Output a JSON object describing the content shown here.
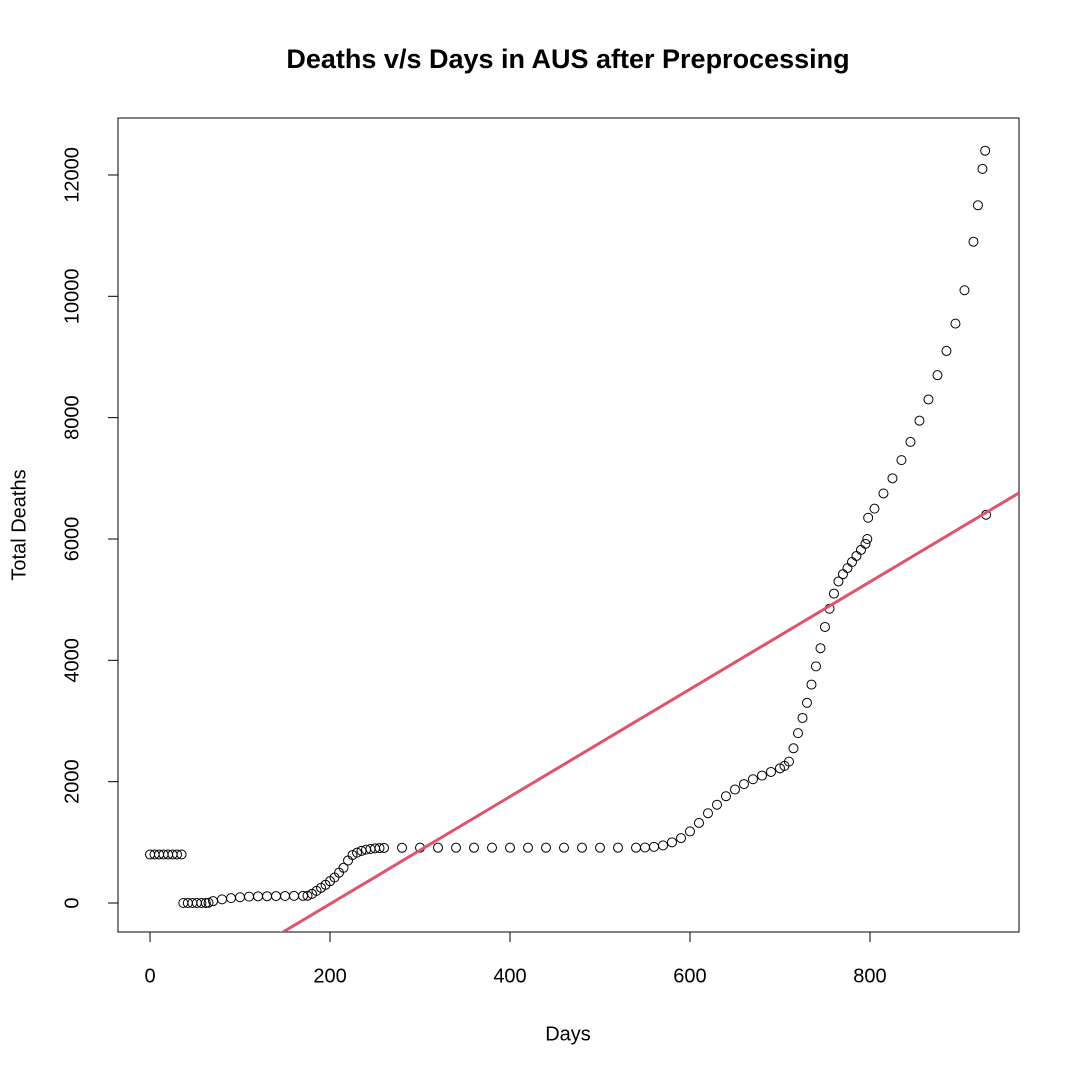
{
  "chart_data": {
    "type": "scatter",
    "title": "Deaths v/s Days in AUS after Preprocessing",
    "x_label": "Days",
    "y_label": "Total Deaths",
    "xlim": [
      -35.6,
      965.6
    ],
    "ylim": [
      -478,
      12939
    ],
    "xticks": [
      0,
      200,
      400,
      600,
      800
    ],
    "yticks": [
      0,
      2000,
      4000,
      6000,
      8000,
      10000,
      12000
    ],
    "point_color": "#000000",
    "regression": {
      "intercept": -1786,
      "slope": 8.85,
      "color": "#df536b"
    },
    "x": [
      0,
      5,
      10,
      15,
      20,
      25,
      30,
      35,
      37,
      42,
      47,
      52,
      57,
      62,
      65,
      70,
      80,
      90,
      100,
      110,
      120,
      130,
      140,
      150,
      160,
      170,
      175,
      180,
      185,
      190,
      195,
      200,
      205,
      210,
      215,
      220,
      225,
      230,
      235,
      240,
      245,
      250,
      255,
      260,
      280,
      300,
      320,
      340,
      360,
      380,
      400,
      420,
      440,
      460,
      480,
      500,
      520,
      540,
      550,
      560,
      570,
      580,
      590,
      600,
      610,
      620,
      630,
      640,
      650,
      660,
      670,
      680,
      690,
      700,
      705,
      710,
      715,
      720,
      725,
      730,
      735,
      740,
      745,
      750,
      755,
      760,
      765,
      770,
      775,
      780,
      785,
      790,
      795,
      797,
      798,
      805,
      815,
      825,
      835,
      845,
      855,
      865,
      875,
      885,
      895,
      905,
      915,
      920,
      925,
      928,
      929
    ],
    "y": [
      800,
      800,
      800,
      800,
      800,
      800,
      800,
      800,
      0,
      0,
      0,
      0,
      0,
      0,
      5,
      30,
      60,
      80,
      95,
      105,
      110,
      112,
      114,
      115,
      117,
      118,
      120,
      150,
      200,
      250,
      300,
      360,
      420,
      500,
      580,
      700,
      790,
      830,
      860,
      880,
      890,
      900,
      905,
      907,
      910,
      912,
      912,
      912,
      912,
      912,
      912,
      912,
      912,
      912,
      912,
      912,
      912,
      912,
      915,
      925,
      950,
      1000,
      1070,
      1180,
      1320,
      1480,
      1620,
      1760,
      1870,
      1960,
      2040,
      2100,
      2160,
      2220,
      2260,
      2330,
      2550,
      2800,
      3050,
      3300,
      3600,
      3900,
      4200,
      4550,
      4850,
      5100,
      5300,
      5420,
      5520,
      5620,
      5720,
      5820,
      5920,
      6000,
      6350,
      6500,
      6750,
      7000,
      7300,
      7600,
      7950,
      8300,
      8700,
      9100,
      9550,
      10100,
      10900,
      11500,
      12100,
      12400,
      6400
    ]
  }
}
